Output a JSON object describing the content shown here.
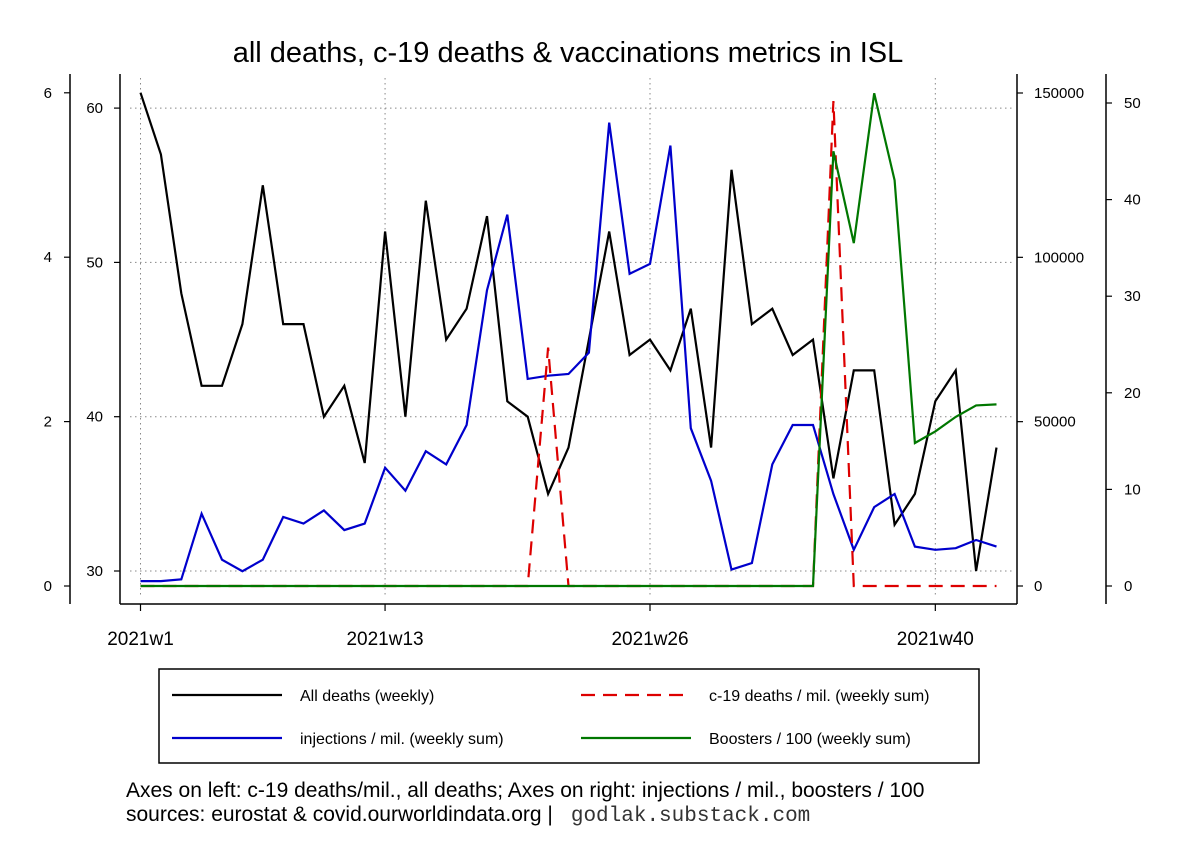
{
  "chart_data": {
    "type": "line",
    "title": "all deaths, c-19 deaths & vaccinations metrics in ISL",
    "x_tick_labels": [
      "2021w1",
      "2021w13",
      "2021w26",
      "2021w40"
    ],
    "x_tick_weeks": [
      1,
      13,
      26,
      40
    ],
    "x_range": [
      1,
      43
    ],
    "axes": {
      "left_outer": {
        "ticks": [
          "0",
          "2",
          "4",
          "6"
        ],
        "range": [
          0,
          6
        ],
        "used_by": "c-19 deaths / mil. (weekly sum)"
      },
      "left_inner": {
        "ticks": [
          "30",
          "40",
          "50",
          "60"
        ],
        "range": [
          29,
          61
        ],
        "used_by": "All deaths (weekly)"
      },
      "right_inner": {
        "ticks": [
          "0",
          "50000",
          "100000",
          "150000"
        ],
        "range": [
          0,
          150000
        ],
        "used_by": "injections / mil. (weekly sum)"
      },
      "right_outer": {
        "ticks": [
          "0",
          "10",
          "20",
          "30",
          "40",
          "50"
        ],
        "range": [
          0,
          51
        ],
        "used_by": "Boosters / 100 (weekly sum)"
      }
    },
    "grid": true,
    "series": [
      {
        "name": "All deaths (weekly)",
        "axis": "left_inner",
        "color": "#000000",
        "dash": "solid",
        "x": [
          1,
          2,
          3,
          4,
          5,
          6,
          7,
          8,
          9,
          10,
          11,
          12,
          13,
          14,
          15,
          16,
          17,
          18,
          19,
          20,
          21,
          22,
          23,
          24,
          25,
          26,
          27,
          28,
          29,
          30,
          31,
          32,
          33,
          34,
          35,
          36,
          37,
          38,
          39,
          40,
          41,
          42,
          43
        ],
        "values": [
          61,
          57,
          48,
          42,
          42,
          46,
          55,
          46,
          46,
          40,
          42,
          37,
          52,
          40,
          54,
          45,
          47,
          53,
          41,
          40,
          35,
          38,
          45,
          52,
          44,
          45,
          43,
          47,
          38,
          56,
          46,
          47,
          44,
          45,
          36,
          43,
          43,
          33,
          35,
          41,
          43,
          30,
          38
        ]
      },
      {
        "name": "injections / mil. (weekly sum)",
        "axis": "right_inner",
        "color": "#0000cc",
        "dash": "solid",
        "x": [
          1,
          2,
          3,
          4,
          5,
          6,
          7,
          8,
          9,
          10,
          11,
          12,
          13,
          14,
          15,
          16,
          17,
          18,
          19,
          20,
          21,
          22,
          23,
          24,
          25,
          26,
          27,
          28,
          29,
          30,
          31,
          32,
          33,
          34,
          35,
          36,
          37,
          38,
          39,
          40,
          41,
          42,
          43
        ],
        "values": [
          1500,
          1500,
          2000,
          22000,
          8000,
          4500,
          8000,
          21000,
          19000,
          23000,
          17000,
          19000,
          36000,
          29000,
          41000,
          37000,
          49000,
          90000,
          113000,
          63000,
          64000,
          64500,
          71000,
          141000,
          95000,
          98000,
          134000,
          48000,
          32000,
          5000,
          7000,
          37000,
          49000,
          49000,
          28000,
          11000,
          24000,
          28000,
          12000,
          11000,
          11500,
          14000,
          12000
        ]
      },
      {
        "name": "c-19 deaths / mil. (weekly sum)",
        "axis": "left_outer",
        "color": "#dd0000",
        "dash": "dashed",
        "x": [
          1,
          2,
          3,
          4,
          5,
          6,
          7,
          8,
          9,
          10,
          11,
          12,
          13,
          14,
          15,
          16,
          17,
          18,
          19,
          20,
          21,
          22,
          23,
          24,
          25,
          26,
          27,
          28,
          29,
          30,
          31,
          32,
          33,
          34,
          35,
          36,
          37,
          38,
          39,
          40,
          41,
          42,
          43
        ],
        "values": [
          0,
          0,
          0,
          0,
          0,
          0,
          0,
          0,
          0,
          0,
          0,
          0,
          0,
          0,
          0,
          0,
          0,
          0,
          0,
          0,
          2.9,
          0,
          0,
          0,
          0,
          0,
          0,
          0,
          0,
          0,
          0,
          0,
          0,
          0,
          5.9,
          0,
          0,
          0,
          0,
          0,
          0,
          0,
          0
        ]
      },
      {
        "name": "Boosters / 100 (weekly sum)",
        "axis": "right_outer",
        "color": "#007700",
        "dash": "solid",
        "x": [
          1,
          2,
          3,
          4,
          5,
          6,
          7,
          8,
          9,
          10,
          11,
          12,
          13,
          14,
          15,
          16,
          17,
          18,
          19,
          20,
          21,
          22,
          23,
          24,
          25,
          26,
          27,
          28,
          29,
          30,
          31,
          32,
          33,
          34,
          35,
          36,
          37,
          38,
          39,
          40,
          41,
          42,
          43
        ],
        "values": [
          0,
          0,
          0,
          0,
          0,
          0,
          0,
          0,
          0,
          0,
          0,
          0,
          0,
          0,
          0,
          0,
          0,
          0,
          0,
          0,
          0,
          0,
          0,
          0,
          0,
          0,
          0,
          0,
          0,
          0,
          0,
          0,
          0,
          0,
          45,
          35.5,
          51,
          42,
          14.8,
          16,
          17.5,
          18.7,
          18.8
        ]
      }
    ],
    "legend_position": "bottom",
    "legend_entries": [
      "All deaths (weekly)",
      "c-19 deaths / mil. (weekly sum)",
      "injections / mil. (weekly sum)",
      "Boosters / 100 (weekly sum)"
    ]
  },
  "footer": {
    "line1": "Axes on left: c-19 deaths/mil., all deaths; Axes on right: injections / mil., boosters / 100",
    "line2": "sources: eurostat & covid.ourworldindata.org |",
    "watermark": "godlak.substack.com"
  }
}
